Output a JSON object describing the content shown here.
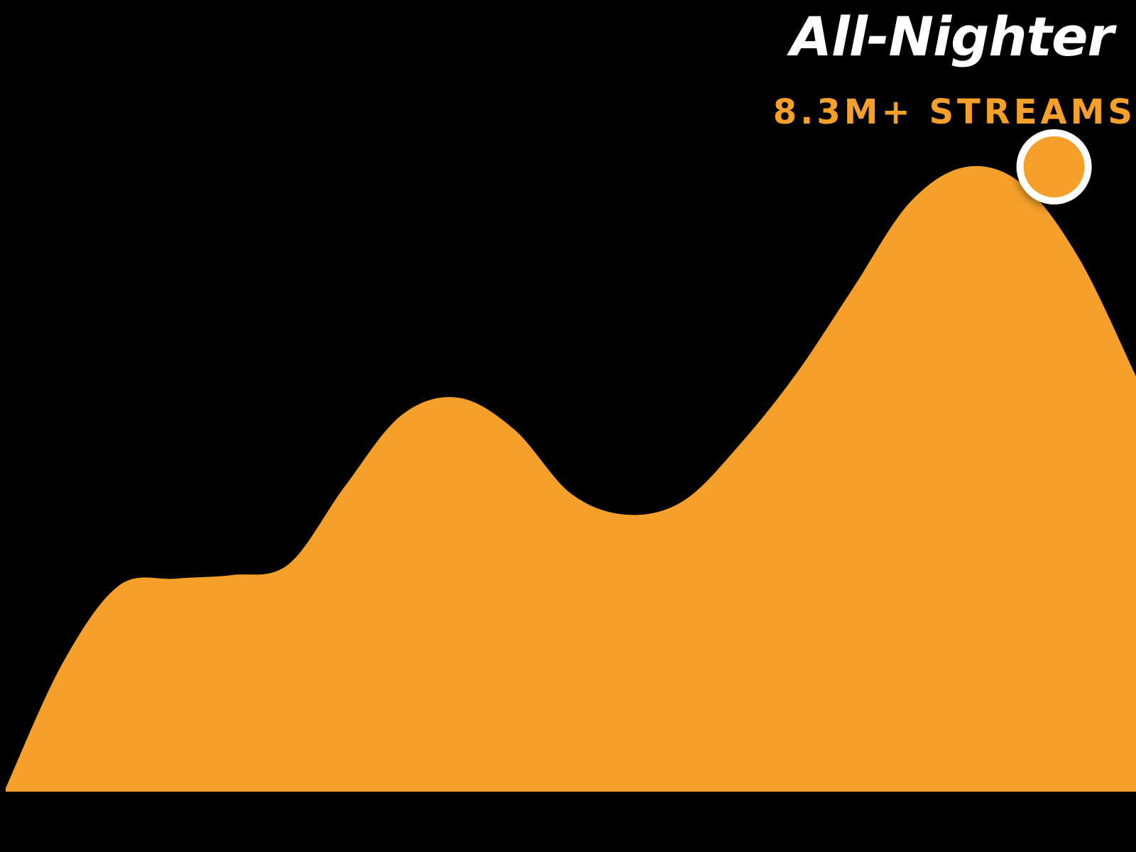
{
  "header": {
    "title": "All-Nighter",
    "subtitle": "8.3M+ STREAMS"
  },
  "colors": {
    "background": "#000000",
    "title": "#ffffff",
    "accent": "#F5A02A",
    "marker_stroke": "#ffffff"
  },
  "chart_data": {
    "type": "area",
    "title": "",
    "xlabel": "",
    "ylabel": "",
    "grid": false,
    "legend": "none",
    "x": [
      0,
      1,
      2,
      3,
      4,
      5,
      6,
      7,
      8,
      9,
      10,
      11,
      12,
      13,
      14,
      15,
      16,
      17,
      18,
      19,
      20
    ],
    "series": [
      {
        "values": [
          0.05,
          1.8,
          2.9,
          3.0,
          3.05,
          3.2,
          4.3,
          5.3,
          5.55,
          5.1,
          4.2,
          3.9,
          4.1,
          4.9,
          5.9,
          7.1,
          8.3,
          8.8,
          8.55,
          7.5,
          5.85
        ]
      }
    ],
    "ylim": [
      0,
      10
    ],
    "highlight": {
      "x": 18.55,
      "y": 8.8
    }
  }
}
